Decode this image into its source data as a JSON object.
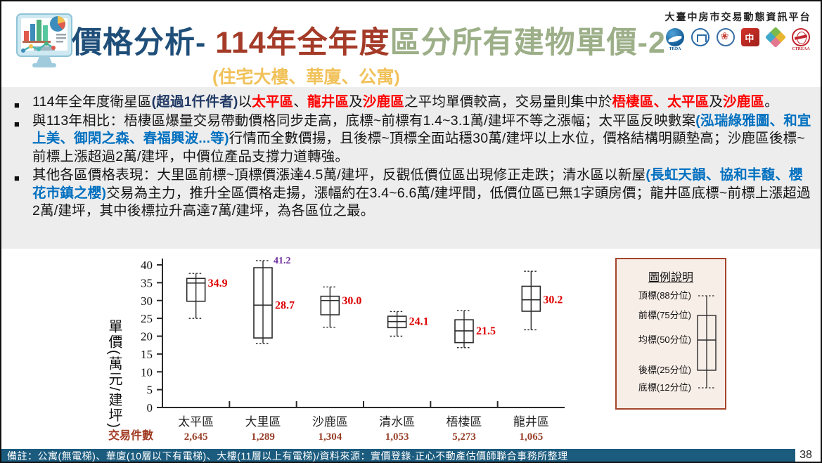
{
  "header": {
    "title_part1": "價格分析- ",
    "title_part2": "114年全年度",
    "title_part3": "區分所有建物單價-2",
    "subtitle": "(住宅大樓、華廈、公寓)",
    "platform_name": "大臺中房市交易動態資訊平台",
    "logos": [
      {
        "name": "trda-logo",
        "style": "trda",
        "caption": "TRDA"
      },
      {
        "name": "builders-association-logo",
        "style": "assoc",
        "caption": ""
      },
      {
        "name": "land-office-logo",
        "style": "gov",
        "caption": ""
      },
      {
        "name": "pin-logo",
        "style": "pin",
        "caption": ""
      },
      {
        "name": "diamond-logo",
        "style": "diamond",
        "caption": ""
      },
      {
        "name": "ctreaa-logo",
        "style": "ctreaa",
        "caption": "CTREAA"
      }
    ]
  },
  "bullets": [
    {
      "segments": [
        {
          "t": "114年全年度衛星區",
          "s": "n"
        },
        {
          "t": "(超過1仟件者)",
          "s": "navy"
        },
        {
          "t": "以",
          "s": "n"
        },
        {
          "t": "太平區",
          "s": "red"
        },
        {
          "t": "、",
          "s": "n"
        },
        {
          "t": "龍井區",
          "s": "red"
        },
        {
          "t": "及",
          "s": "n"
        },
        {
          "t": "沙鹿區",
          "s": "red"
        },
        {
          "t": "之平均單價較高，交易量則集中於",
          "s": "n"
        },
        {
          "t": "梧棲區、太平區",
          "s": "red"
        },
        {
          "t": "及",
          "s": "n"
        },
        {
          "t": "沙鹿區",
          "s": "red"
        },
        {
          "t": "。",
          "s": "n"
        }
      ]
    },
    {
      "segments": [
        {
          "t": "與113年相比：梧棲區爆量交易帶動價格同步走高，底標~前標有1.4~3.1萬/建坪不等之漲幅；太平區反映數案",
          "s": "n"
        },
        {
          "t": "(泓瑞綠雅圖、和宜上美、御閑之森、春福興波...等)",
          "s": "blue"
        },
        {
          "t": "行情而全數價揚，且後標~頂標全面站穩30萬/建坪以上水位，價格結構明顯墊高；沙鹿區後標~前標上漲超過2萬/建坪，中價位產品支撐力道轉強。",
          "s": "n"
        }
      ]
    },
    {
      "segments": [
        {
          "t": "其他各區價格表現：大里區前標~頂標價漲達4.5萬/建坪，反觀低價位區出現修正走跌；清水區以新屋",
          "s": "n"
        },
        {
          "t": "(長虹天韻、協和丰馥、櫻花市鎮之櫻)",
          "s": "blue"
        },
        {
          "t": "交易為主力，推升全區價格走揚，漲幅約在3.4~6.6萬/建坪間，低價位區已無1字頭房價；龍井區底標~前標上漲超過2萬/建坪，其中後標拉升高達7萬/建坪，為各區位之最。",
          "s": "n"
        }
      ]
    }
  ],
  "chart_data": {
    "type": "boxplot",
    "ylabel": "單價(萬元/建坪)",
    "ylim": [
      0,
      40
    ],
    "ytick_step": 5,
    "grid": false,
    "categories": [
      "太平區",
      "大里區",
      "沙鹿區",
      "清水區",
      "梧棲區",
      "龍井區"
    ],
    "counts_label": "交易件數",
    "counts": [
      "2,645",
      "1,289",
      "1,304",
      "1,053",
      "5,273",
      "1,065"
    ],
    "percentile_definition": {
      "high": "88分位",
      "q3": "75分位",
      "median": "50分位",
      "q1": "25分位",
      "low": "12分位"
    },
    "series": [
      {
        "name": "太平區",
        "low": 25.0,
        "q1": 29.8,
        "median": 34.9,
        "q3": 36.2,
        "high": 37.6,
        "median_label": "34.9"
      },
      {
        "name": "大里區",
        "low": 18.0,
        "q1": 19.5,
        "median": 28.7,
        "q3": 39.2,
        "high": 41.2,
        "median_label": "28.7",
        "high_label": "41.2"
      },
      {
        "name": "沙鹿區",
        "low": 22.5,
        "q1": 26.0,
        "median": 30.0,
        "q3": 31.2,
        "high": 33.8,
        "median_label": "30.0"
      },
      {
        "name": "清水區",
        "low": 20.0,
        "q1": 22.4,
        "median": 24.1,
        "q3": 25.6,
        "high": 26.9,
        "median_label": "24.1"
      },
      {
        "name": "梧棲區",
        "low": 16.8,
        "q1": 18.2,
        "median": 21.5,
        "q3": 24.6,
        "high": 27.2,
        "median_label": "21.5"
      },
      {
        "name": "龍井區",
        "low": 21.8,
        "q1": 27.0,
        "median": 30.2,
        "q3": 34.0,
        "high": 38.2,
        "median_label": "30.2"
      }
    ],
    "colors": {
      "box_stroke": "#2a2a2a",
      "median_label": "#DD0000",
      "high_label": "#7030A0",
      "counts": "#97402A",
      "counts_title": "#A03A22"
    }
  },
  "legend": {
    "title": "圖例說明",
    "items": [
      "頂標(88分位)",
      "前標(75分位)",
      "均標(50分位)",
      "後標(25分位)",
      "底標(12分位)"
    ]
  },
  "footer": {
    "note": "備註：公寓(無電梯)、華廈(10層以下有電梯)、大樓(11層以上有電梯)/資料來源：實價登錄·正心不動產估價師聯合事務所整理",
    "page": "38"
  }
}
